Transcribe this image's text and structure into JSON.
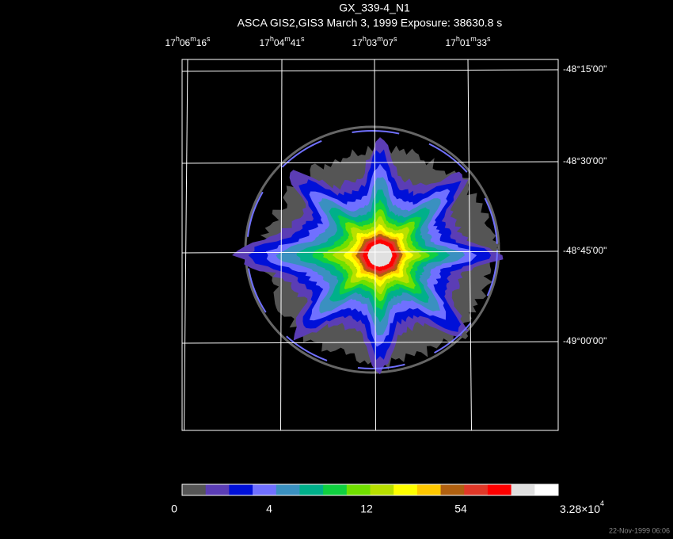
{
  "title": "GX_339-4_N1",
  "subtitle": "ASCA GIS2,GIS3 March 3, 1999 Exposure: 38630.8 s",
  "ra_labels": [
    [
      "17",
      "h",
      "06",
      "m",
      "16",
      "s"
    ],
    [
      "17",
      "h",
      "04",
      "m",
      "41",
      "s"
    ],
    [
      "17",
      "h",
      "03",
      "m",
      "07",
      "s"
    ],
    [
      "17",
      "h",
      "01",
      "m",
      "33",
      "s"
    ]
  ],
  "dec_labels": [
    "-48°15'00\"",
    "-48°30'00\"",
    "-48°45'00\"",
    "-49°00'00\""
  ],
  "colorbar": {
    "colors": [
      "#555555",
      "#5b3db5",
      "#0010d8",
      "#7070ff",
      "#3a90c0",
      "#00b08a",
      "#10d040",
      "#70e000",
      "#b8e000",
      "#ffff00",
      "#ffc800",
      "#b06010",
      "#e03828",
      "#ff0000",
      "#e0e0e0",
      "#ffffff"
    ],
    "labels": [
      "0",
      "4",
      "12",
      "54"
    ],
    "max_label": {
      "mantissa": "3.28×10",
      "exponent": "4"
    }
  },
  "timestamp": "22-Nov-1999 06:06"
}
